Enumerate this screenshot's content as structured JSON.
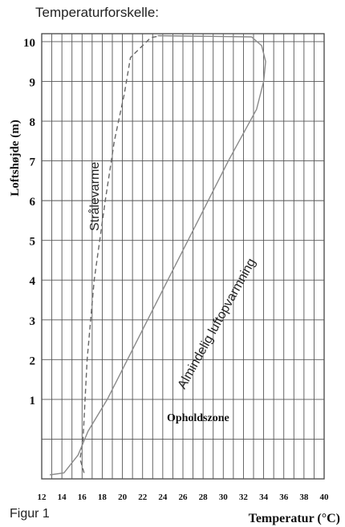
{
  "header": {
    "title": "Temperaturforskelle:"
  },
  "figure": {
    "label": "Figur 1"
  },
  "chart_data": {
    "type": "line",
    "xlabel": "Temperatur (°C)",
    "ylabel": "Loftshøjde (m)",
    "xlim": [
      12,
      40
    ],
    "ylim": [
      -1,
      10.2
    ],
    "x_ticks": [
      12,
      14,
      16,
      18,
      20,
      22,
      24,
      26,
      28,
      30,
      32,
      34,
      36,
      38,
      40
    ],
    "y_ticks": [
      1,
      2,
      3,
      4,
      5,
      6,
      7,
      8,
      9,
      10
    ],
    "y_tick_labels": [
      "1",
      "2",
      "3",
      "4",
      "5",
      "6",
      "7",
      "8",
      "9",
      "10"
    ],
    "grid": true,
    "series": [
      {
        "name": "Strålevarme",
        "line_style": "dashed",
        "color": "#666666",
        "x": [
          16.2,
          15.8,
          16.1,
          16.5,
          17.2,
          18.3,
          19.2,
          20.2,
          20.8,
          22.8,
          23.8
        ],
        "y": [
          -0.85,
          -0.5,
          0,
          2,
          4,
          6,
          7.5,
          8.7,
          9.6,
          10.1,
          10.15
        ]
      },
      {
        "name": "Almindelig luftopvarmning",
        "line_style": "solid",
        "color": "#8a8a8a",
        "x": [
          12.8,
          14.2,
          15.6,
          16.6,
          18.5,
          21.5,
          24.5,
          27.5,
          30.5,
          33.3,
          34.0,
          34.2,
          33.8,
          32.8,
          23.5
        ],
        "y": [
          -0.9,
          -0.85,
          -0.4,
          0.2,
          1.0,
          2.5,
          4.0,
          5.5,
          7.0,
          8.3,
          9.0,
          9.5,
          9.9,
          10.12,
          10.15
        ]
      }
    ],
    "annotations": [
      {
        "text": "Opholdszone",
        "x": 27.5,
        "y": 0.45
      }
    ]
  }
}
